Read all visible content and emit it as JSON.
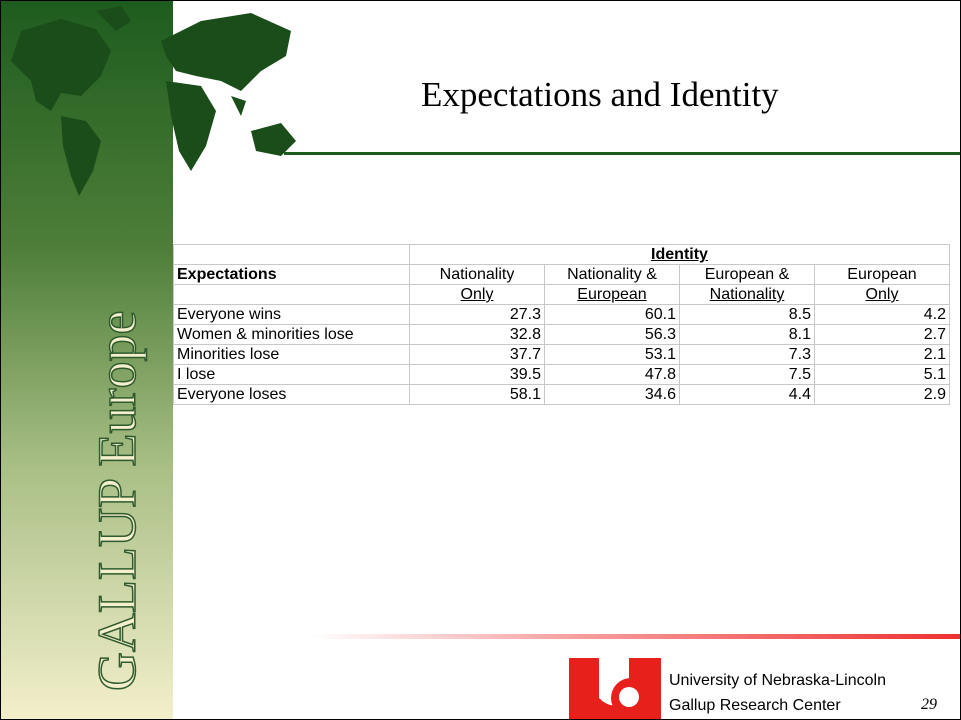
{
  "title": "Expectations and Identity",
  "sidebar_label": "GALLUP Europe",
  "table": {
    "group_header": "Identity",
    "row_header": "Expectations",
    "columns_line1": [
      "Nationality",
      "Nationality &",
      "European &",
      "European"
    ],
    "columns_line2": [
      "Only",
      "European",
      "Nationality",
      "Only"
    ],
    "rows": [
      [
        "Everyone wins",
        27.3,
        60.1,
        8.5,
        4.2
      ],
      [
        "Women & minorities lose",
        32.8,
        56.3,
        8.1,
        2.7
      ],
      [
        "Minorities lose",
        37.7,
        53.1,
        7.3,
        2.1
      ],
      [
        "I lose",
        39.5,
        47.8,
        7.5,
        5.1
      ],
      [
        "Everyone loses",
        58.1,
        34.6,
        4.4,
        2.9
      ]
    ]
  },
  "footer": {
    "line1": "University of Nebraska-Lincoln",
    "line2": "Gallup Research Center"
  },
  "page_number": "29"
}
